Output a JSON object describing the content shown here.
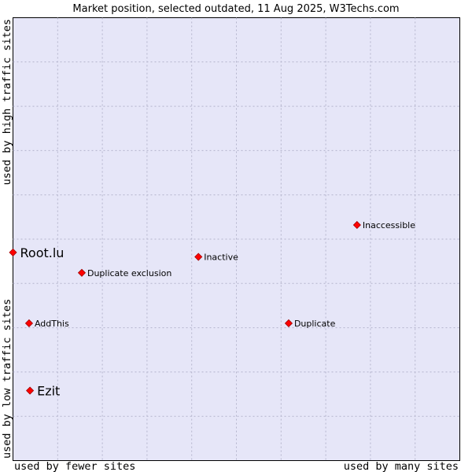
{
  "chart_data": {
    "type": "scatter",
    "title": "Market position, selected outdated, 11 Aug 2025, W3Techs.com",
    "x_axis": {
      "low_label": "used by fewer sites",
      "high_label": "used by many sites"
    },
    "y_axis": {
      "low_label": "used by low traffic sites",
      "high_label": "used by high traffic sites"
    },
    "xlim": [
      0,
      100
    ],
    "ylim": [
      0,
      100
    ],
    "grid": true,
    "colors": {
      "plot_background": "#e6e6f8",
      "grid": "#b4b4cc",
      "marker": "#ff0000",
      "marker_edge": "#a00000"
    },
    "points": [
      {
        "label": "Inaccessible",
        "x": 77.0,
        "y": 53.2,
        "emphasis": false
      },
      {
        "label": "Root.lu",
        "x": 0.0,
        "y": 47.0,
        "emphasis": true
      },
      {
        "label": "Inactive",
        "x": 41.5,
        "y": 46.0,
        "emphasis": false
      },
      {
        "label": "Duplicate exclusion",
        "x": 15.4,
        "y": 42.4,
        "emphasis": false
      },
      {
        "label": "AddThis",
        "x": 3.6,
        "y": 31.0,
        "emphasis": false
      },
      {
        "label": "Duplicate",
        "x": 61.7,
        "y": 31.0,
        "emphasis": false
      },
      {
        "label": "Ezit",
        "x": 3.8,
        "y": 15.8,
        "emphasis": true
      }
    ]
  }
}
